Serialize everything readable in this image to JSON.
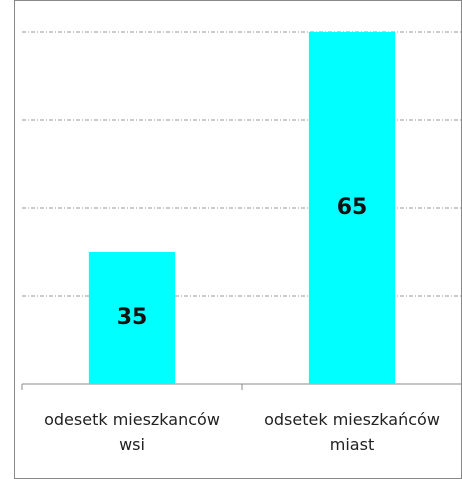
{
  "chart_data": {
    "type": "bar",
    "categories": [
      "odesetk mieszkanców wsi",
      "odsetek mieszkańców miast"
    ],
    "values": [
      35,
      65
    ],
    "color": "#00ffff",
    "ylim": [
      17,
      65
    ],
    "yticks": [
      17,
      29,
      41,
      53,
      65
    ],
    "grid": true
  }
}
